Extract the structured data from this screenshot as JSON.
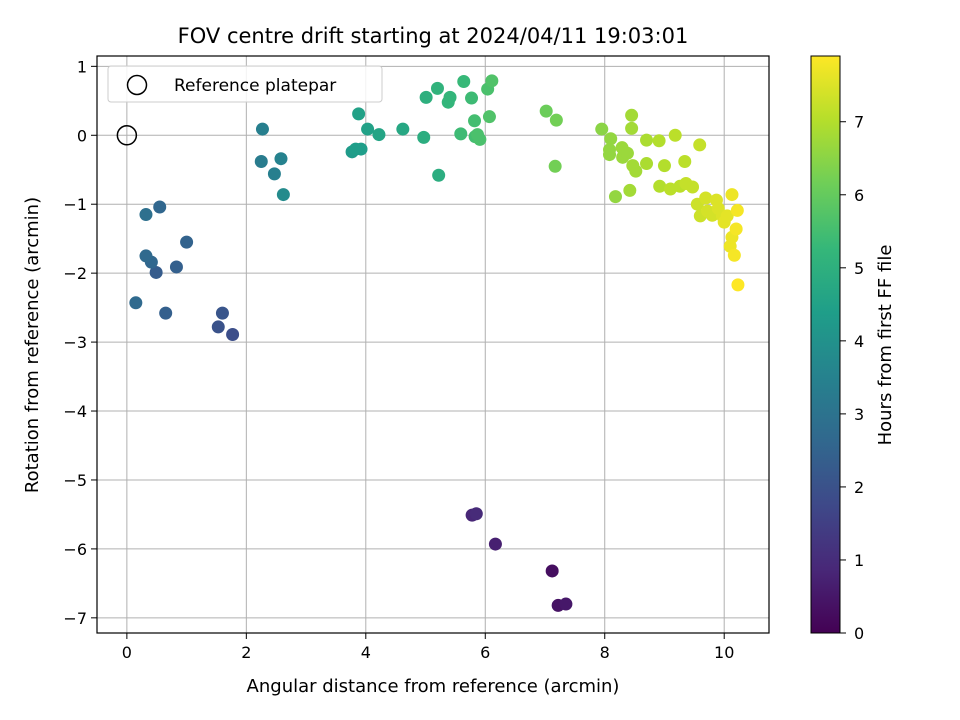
{
  "chart_data": {
    "type": "scatter",
    "title": "FOV centre drift starting at 2024/04/11 19:03:01",
    "xlabel": "Angular distance from reference (arcmin)",
    "ylabel": "Rotation from reference (arcmin)",
    "xlim": [
      -0.5,
      10.75
    ],
    "ylim": [
      -7.22,
      1.15
    ],
    "xticks": [
      "0",
      "2",
      "4",
      "6",
      "8",
      "10"
    ],
    "yticks": [
      "1",
      "0",
      "−1",
      "−2",
      "−3",
      "−4",
      "−5",
      "−6",
      "−7"
    ],
    "grid": true,
    "legend": {
      "placement": "top-left",
      "entries": [
        "Reference platepar"
      ]
    },
    "reference_point": {
      "x": 0,
      "y": 0
    },
    "colorbar": {
      "label": "Hours from first FF file",
      "range": [
        0,
        7.9
      ],
      "ticks": [
        "0",
        "1",
        "2",
        "3",
        "4",
        "5",
        "6",
        "7"
      ],
      "colormap": [
        "#440154",
        "#482878",
        "#3e4989",
        "#31688e",
        "#26828e",
        "#1f9e89",
        "#35b779",
        "#6ece58",
        "#b5de2b",
        "#fde725"
      ]
    },
    "points": [
      {
        "x": 7.12,
        "y": -6.32,
        "h": 0.3
      },
      {
        "x": 7.22,
        "y": -6.82,
        "h": 0.4
      },
      {
        "x": 7.35,
        "y": -6.8,
        "h": 0.5
      },
      {
        "x": 6.17,
        "y": -5.93,
        "h": 0.7
      },
      {
        "x": 5.78,
        "y": -5.51,
        "h": 0.85
      },
      {
        "x": 5.85,
        "y": -5.49,
        "h": 0.95
      },
      {
        "x": 1.77,
        "y": -2.89,
        "h": 1.9
      },
      {
        "x": 1.53,
        "y": -2.78,
        "h": 2.0
      },
      {
        "x": 1.6,
        "y": -2.58,
        "h": 2.1
      },
      {
        "x": 0.65,
        "y": -2.58,
        "h": 2.4
      },
      {
        "x": 0.15,
        "y": -2.43,
        "h": 2.7
      },
      {
        "x": 0.49,
        "y": -1.99,
        "h": 2.3
      },
      {
        "x": 0.83,
        "y": -1.91,
        "h": 2.4
      },
      {
        "x": 0.41,
        "y": -1.84,
        "h": 2.6
      },
      {
        "x": 0.32,
        "y": -1.75,
        "h": 2.7
      },
      {
        "x": 1.0,
        "y": -1.55,
        "h": 2.5
      },
      {
        "x": 0.55,
        "y": -1.04,
        "h": 2.6
      },
      {
        "x": 0.32,
        "y": -1.15,
        "h": 2.9
      },
      {
        "x": 2.25,
        "y": -0.38,
        "h": 3.3
      },
      {
        "x": 2.47,
        "y": -0.56,
        "h": 3.4
      },
      {
        "x": 2.62,
        "y": -0.86,
        "h": 3.8
      },
      {
        "x": 2.58,
        "y": -0.34,
        "h": 3.5
      },
      {
        "x": 2.27,
        "y": 0.09,
        "h": 3.4
      },
      {
        "x": 3.77,
        "y": -0.24,
        "h": 4.3
      },
      {
        "x": 3.83,
        "y": -0.2,
        "h": 4.4
      },
      {
        "x": 3.92,
        "y": -0.2,
        "h": 4.4
      },
      {
        "x": 4.03,
        "y": 0.09,
        "h": 4.5
      },
      {
        "x": 4.22,
        "y": 0.01,
        "h": 4.6
      },
      {
        "x": 3.88,
        "y": 0.31,
        "h": 4.5
      },
      {
        "x": 4.62,
        "y": 0.09,
        "h": 4.7
      },
      {
        "x": 4.97,
        "y": -0.03,
        "h": 4.9
      },
      {
        "x": 5.22,
        "y": -0.58,
        "h": 4.9
      },
      {
        "x": 5.01,
        "y": 0.55,
        "h": 5.0
      },
      {
        "x": 5.2,
        "y": 0.68,
        "h": 5.1
      },
      {
        "x": 5.38,
        "y": 0.48,
        "h": 5.2
      },
      {
        "x": 5.41,
        "y": 0.55,
        "h": 5.2
      },
      {
        "x": 5.64,
        "y": 0.78,
        "h": 5.3
      },
      {
        "x": 5.77,
        "y": 0.54,
        "h": 5.4
      },
      {
        "x": 5.59,
        "y": 0.02,
        "h": 5.4
      },
      {
        "x": 5.82,
        "y": 0.21,
        "h": 5.5
      },
      {
        "x": 5.83,
        "y": -0.02,
        "h": 5.5
      },
      {
        "x": 5.91,
        "y": -0.06,
        "h": 5.6
      },
      {
        "x": 5.87,
        "y": 0.01,
        "h": 5.6
      },
      {
        "x": 6.04,
        "y": 0.67,
        "h": 5.6
      },
      {
        "x": 6.11,
        "y": 0.79,
        "h": 5.7
      },
      {
        "x": 6.07,
        "y": 0.27,
        "h": 5.7
      },
      {
        "x": 7.02,
        "y": 0.35,
        "h": 6.1
      },
      {
        "x": 7.19,
        "y": 0.22,
        "h": 6.2
      },
      {
        "x": 7.17,
        "y": -0.45,
        "h": 6.2
      },
      {
        "x": 7.95,
        "y": 0.09,
        "h": 6.5
      },
      {
        "x": 8.1,
        "y": -0.05,
        "h": 6.6
      },
      {
        "x": 8.08,
        "y": -0.21,
        "h": 6.6
      },
      {
        "x": 8.08,
        "y": -0.28,
        "h": 6.6
      },
      {
        "x": 8.18,
        "y": -0.89,
        "h": 6.6
      },
      {
        "x": 8.29,
        "y": -0.18,
        "h": 6.7
      },
      {
        "x": 8.3,
        "y": -0.32,
        "h": 6.7
      },
      {
        "x": 8.38,
        "y": -0.26,
        "h": 6.7
      },
      {
        "x": 8.45,
        "y": 0.1,
        "h": 6.8
      },
      {
        "x": 8.45,
        "y": 0.29,
        "h": 6.8
      },
      {
        "x": 8.47,
        "y": -0.44,
        "h": 6.8
      },
      {
        "x": 8.52,
        "y": -0.52,
        "h": 6.8
      },
      {
        "x": 8.42,
        "y": -0.8,
        "h": 6.8
      },
      {
        "x": 8.7,
        "y": -0.07,
        "h": 6.9
      },
      {
        "x": 8.7,
        "y": -0.41,
        "h": 6.9
      },
      {
        "x": 8.91,
        "y": -0.08,
        "h": 7.0
      },
      {
        "x": 8.92,
        "y": -0.74,
        "h": 7.0
      },
      {
        "x": 9.0,
        "y": -0.44,
        "h": 7.0
      },
      {
        "x": 9.1,
        "y": -0.78,
        "h": 7.1
      },
      {
        "x": 9.18,
        "y": 0.0,
        "h": 7.1
      },
      {
        "x": 9.26,
        "y": -0.74,
        "h": 7.1
      },
      {
        "x": 9.34,
        "y": -0.38,
        "h": 7.1
      },
      {
        "x": 9.36,
        "y": -0.7,
        "h": 7.2
      },
      {
        "x": 9.47,
        "y": -0.75,
        "h": 7.2
      },
      {
        "x": 9.59,
        "y": -0.14,
        "h": 7.2
      },
      {
        "x": 9.55,
        "y": -1.0,
        "h": 7.3
      },
      {
        "x": 9.6,
        "y": -1.17,
        "h": 7.3
      },
      {
        "x": 9.69,
        "y": -0.91,
        "h": 7.4
      },
      {
        "x": 9.72,
        "y": -1.1,
        "h": 7.4
      },
      {
        "x": 9.8,
        "y": -1.16,
        "h": 7.4
      },
      {
        "x": 9.87,
        "y": -0.94,
        "h": 7.5
      },
      {
        "x": 9.9,
        "y": -1.06,
        "h": 7.5
      },
      {
        "x": 9.97,
        "y": -1.17,
        "h": 7.5
      },
      {
        "x": 10.0,
        "y": -1.26,
        "h": 7.6
      },
      {
        "x": 10.05,
        "y": -1.17,
        "h": 7.6
      },
      {
        "x": 10.1,
        "y": -1.61,
        "h": 7.7
      },
      {
        "x": 10.13,
        "y": -1.48,
        "h": 7.7
      },
      {
        "x": 10.13,
        "y": -0.86,
        "h": 7.7
      },
      {
        "x": 10.17,
        "y": -1.74,
        "h": 7.8
      },
      {
        "x": 10.22,
        "y": -1.09,
        "h": 7.8
      },
      {
        "x": 10.2,
        "y": -1.36,
        "h": 7.8
      },
      {
        "x": 10.23,
        "y": -2.17,
        "h": 7.9
      }
    ]
  }
}
